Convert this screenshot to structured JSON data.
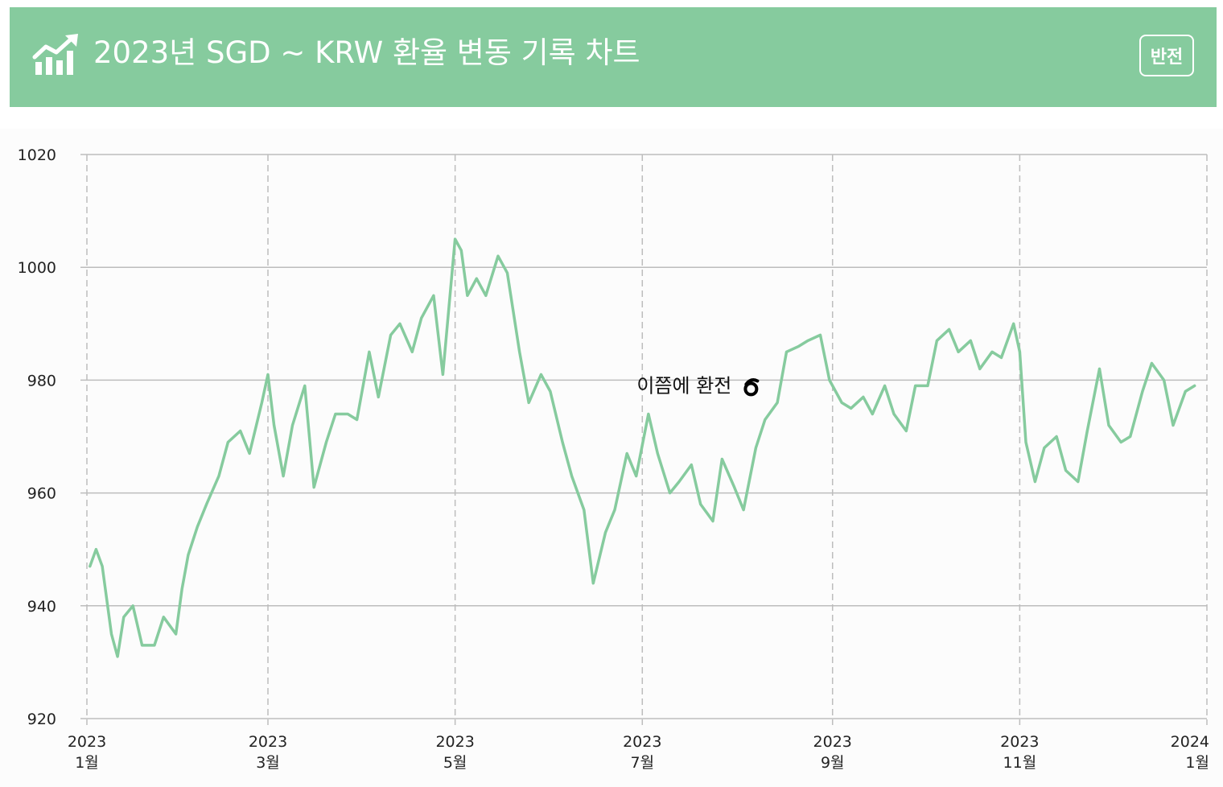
{
  "header": {
    "title": "2023년 SGD ~ KRW 환율 변동 기록 차트",
    "flip_label": "반전",
    "icon": "chart-growth-icon"
  },
  "colors": {
    "header_bg": "#86cb9e",
    "line": "#86cb9e",
    "grid": "#bdbdbd"
  },
  "chart_data": {
    "type": "line",
    "title": "2023년 SGD ~ KRW 환율 변동 기록 차트",
    "xlabel": "",
    "ylabel": "",
    "ylim": [
      920,
      1020
    ],
    "yticks": [
      920,
      940,
      960,
      980,
      1000,
      1020
    ],
    "xlim": [
      "2023-01-01",
      "2024-01-01"
    ],
    "xticks": [
      {
        "date": "2023-01-01",
        "year": "2023",
        "month": "1월"
      },
      {
        "date": "2023-03-01",
        "year": "2023",
        "month": "3월"
      },
      {
        "date": "2023-05-01",
        "year": "2023",
        "month": "5월"
      },
      {
        "date": "2023-07-01",
        "year": "2023",
        "month": "7월"
      },
      {
        "date": "2023-09-01",
        "year": "2023",
        "month": "9월"
      },
      {
        "date": "2023-11-01",
        "year": "2023",
        "month": "11월"
      },
      {
        "date": "2024-01-01",
        "year": "2024",
        "month": "1월"
      }
    ],
    "grid": true,
    "annotation": {
      "text": "이쯤에 환전",
      "date": "2023-08-07",
      "value": 979
    },
    "series": [
      {
        "x": [
          "2023-01-02",
          "2023-01-04",
          "2023-01-06",
          "2023-01-09",
          "2023-01-11",
          "2023-01-13",
          "2023-01-16",
          "2023-01-19",
          "2023-01-23",
          "2023-01-26",
          "2023-01-30",
          "2023-02-01",
          "2023-02-03",
          "2023-02-06",
          "2023-02-09",
          "2023-02-13",
          "2023-02-16",
          "2023-02-20",
          "2023-02-23",
          "2023-02-27",
          "2023-03-01",
          "2023-03-03",
          "2023-03-06",
          "2023-03-09",
          "2023-03-13",
          "2023-03-16",
          "2023-03-20",
          "2023-03-23",
          "2023-03-27",
          "2023-03-30",
          "2023-04-03",
          "2023-04-06",
          "2023-04-10",
          "2023-04-13",
          "2023-04-17",
          "2023-04-20",
          "2023-04-24",
          "2023-04-27",
          "2023-05-01",
          "2023-05-03",
          "2023-05-05",
          "2023-05-08",
          "2023-05-11",
          "2023-05-15",
          "2023-05-18",
          "2023-05-22",
          "2023-05-25",
          "2023-05-29",
          "2023-06-01",
          "2023-06-05",
          "2023-06-08",
          "2023-06-12",
          "2023-06-15",
          "2023-06-19",
          "2023-06-22",
          "2023-06-26",
          "2023-06-29",
          "2023-07-03",
          "2023-07-06",
          "2023-07-10",
          "2023-07-13",
          "2023-07-17",
          "2023-07-20",
          "2023-07-24",
          "2023-07-27",
          "2023-07-31",
          "2023-08-03",
          "2023-08-07",
          "2023-08-10",
          "2023-08-14",
          "2023-08-17",
          "2023-08-21",
          "2023-08-24",
          "2023-08-28",
          "2023-08-31",
          "2023-09-04",
          "2023-09-07",
          "2023-09-11",
          "2023-09-14",
          "2023-09-18",
          "2023-09-21",
          "2023-09-25",
          "2023-09-28",
          "2023-10-02",
          "2023-10-05",
          "2023-10-09",
          "2023-10-12",
          "2023-10-16",
          "2023-10-19",
          "2023-10-23",
          "2023-10-26",
          "2023-10-30",
          "2023-11-01",
          "2023-11-03",
          "2023-11-06",
          "2023-11-09",
          "2023-11-13",
          "2023-11-16",
          "2023-11-20",
          "2023-11-23",
          "2023-11-27",
          "2023-11-30",
          "2023-12-04",
          "2023-12-07",
          "2023-12-11",
          "2023-12-14",
          "2023-12-18",
          "2023-12-21",
          "2023-12-25",
          "2023-12-28"
        ],
        "values": [
          947,
          950,
          947,
          935,
          931,
          938,
          940,
          933,
          933,
          938,
          935,
          943,
          949,
          954,
          958,
          963,
          969,
          971,
          967,
          976,
          981,
          972,
          963,
          972,
          979,
          961,
          969,
          974,
          974,
          973,
          985,
          977,
          988,
          990,
          985,
          991,
          995,
          981,
          1005,
          1003,
          995,
          998,
          995,
          1002,
          999,
          985,
          976,
          981,
          978,
          969,
          963,
          957,
          944,
          953,
          957,
          967,
          963,
          974,
          967,
          960,
          962,
          965,
          958,
          955,
          966,
          961,
          957,
          968,
          973,
          976,
          985,
          986,
          987,
          988,
          980,
          976,
          975,
          977,
          974,
          979,
          974,
          971,
          979,
          979,
          987,
          989,
          985,
          987,
          982,
          985,
          984,
          990,
          985,
          969,
          962,
          968,
          970,
          964,
          962,
          971,
          982,
          972,
          969,
          970,
          978,
          983,
          980,
          972,
          978,
          979
        ]
      }
    ]
  }
}
